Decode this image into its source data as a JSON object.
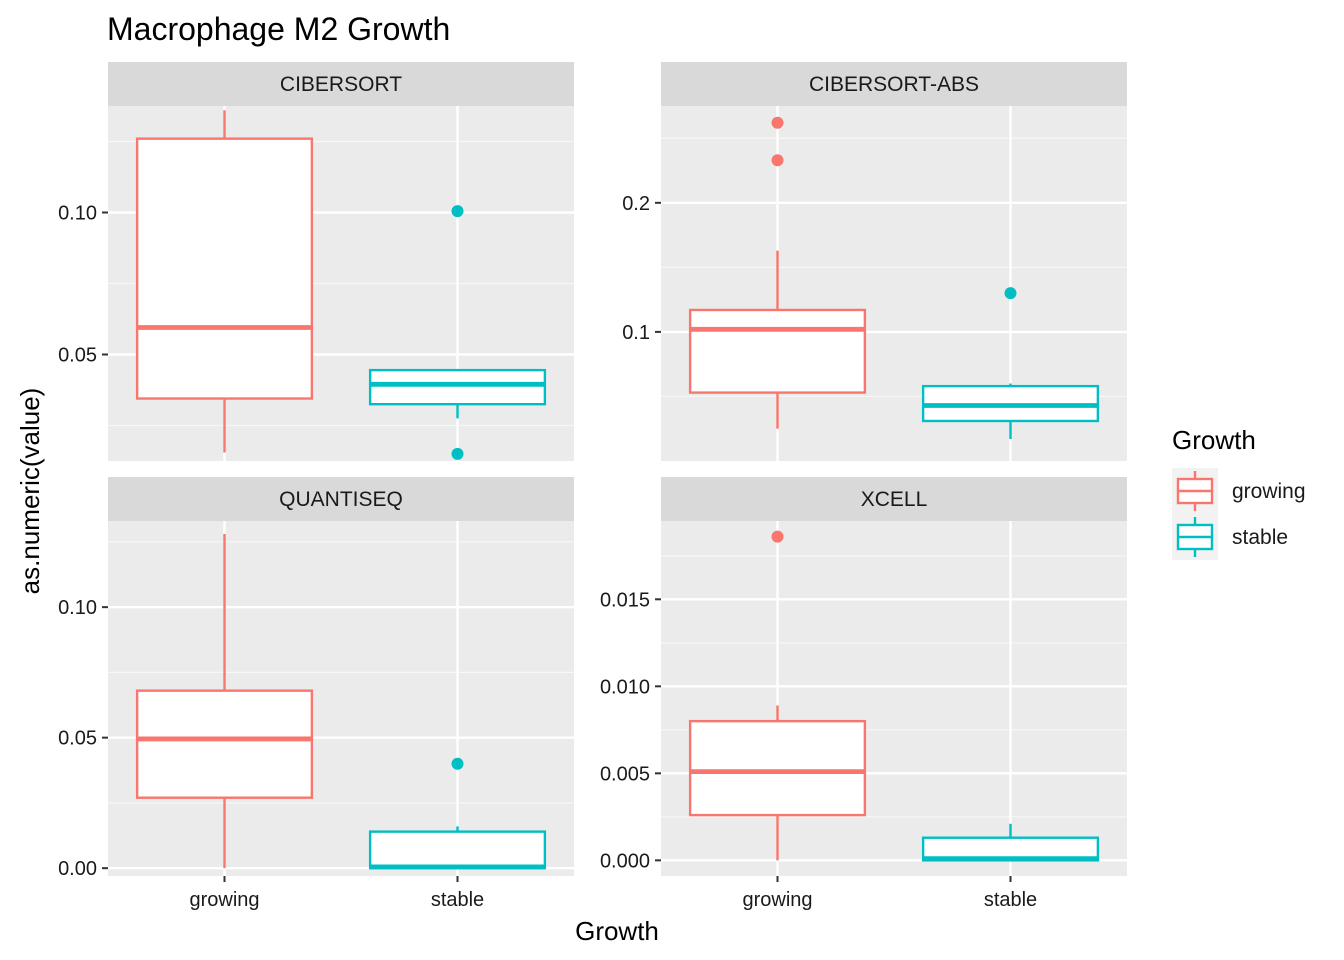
{
  "chart_data": {
    "type": "boxplot",
    "title": "Macrophage M2 Growth",
    "xlabel": "Growth",
    "ylabel": "as.numeric(value)",
    "categories": [
      "growing",
      "stable"
    ],
    "legend": {
      "title": "Growth",
      "placement": "right",
      "entries": [
        {
          "label": "growing",
          "color": "#F8766D"
        },
        {
          "label": "stable",
          "color": "#00BFC4"
        }
      ]
    },
    "grid": true,
    "panels": [
      {
        "name": "CIBERSORT",
        "ylim": [
          0.0125,
          0.1375
        ],
        "yticks": [
          0.05,
          0.1
        ],
        "ytick_labels": [
          "0.05",
          "0.10"
        ],
        "boxes": [
          {
            "category": "growing",
            "min": 0.0155,
            "q1": 0.0345,
            "median": 0.0595,
            "q3": 0.126,
            "max": 0.136,
            "outliers": []
          },
          {
            "category": "stable",
            "min": 0.0275,
            "q1": 0.0325,
            "median": 0.0395,
            "q3": 0.0445,
            "max": 0.0445,
            "outliers": [
              0.1005,
              0.015
            ]
          }
        ]
      },
      {
        "name": "CIBERSORT-ABS",
        "ylim": [
          0.0,
          0.275
        ],
        "yticks": [
          0.1,
          0.2
        ],
        "ytick_labels": [
          "0.1",
          "0.2"
        ],
        "boxes": [
          {
            "category": "growing",
            "min": 0.025,
            "q1": 0.053,
            "median": 0.102,
            "q3": 0.117,
            "max": 0.163,
            "outliers": [
              0.262,
              0.233
            ]
          },
          {
            "category": "stable",
            "min": 0.017,
            "q1": 0.031,
            "median": 0.043,
            "q3": 0.058,
            "max": 0.06,
            "outliers": [
              0.13
            ]
          }
        ]
      },
      {
        "name": "QUANTISEQ",
        "ylim": [
          -0.003,
          0.133
        ],
        "yticks": [
          0.0,
          0.05,
          0.1
        ],
        "ytick_labels": [
          "0.00",
          "0.05",
          "0.10"
        ],
        "boxes": [
          {
            "category": "growing",
            "min": 0.0,
            "q1": 0.027,
            "median": 0.0495,
            "q3": 0.068,
            "max": 0.128,
            "outliers": []
          },
          {
            "category": "stable",
            "min": 0.0,
            "q1": 0.0,
            "median": 0.0005,
            "q3": 0.014,
            "max": 0.016,
            "outliers": [
              0.04
            ]
          }
        ]
      },
      {
        "name": "XCELL",
        "ylim": [
          -0.0009,
          0.0195
        ],
        "yticks": [
          0.0,
          0.005,
          0.01,
          0.015
        ],
        "ytick_labels": [
          "0.000",
          "0.005",
          "0.010",
          "0.015"
        ],
        "boxes": [
          {
            "category": "growing",
            "min": 0.0,
            "q1": 0.0026,
            "median": 0.0051,
            "q3": 0.008,
            "max": 0.0089,
            "outliers": [
              0.0186
            ]
          },
          {
            "category": "stable",
            "min": 0.0,
            "q1": 0.0,
            "median": 0.0001,
            "q3": 0.0013,
            "max": 0.0021,
            "outliers": []
          }
        ]
      }
    ]
  }
}
